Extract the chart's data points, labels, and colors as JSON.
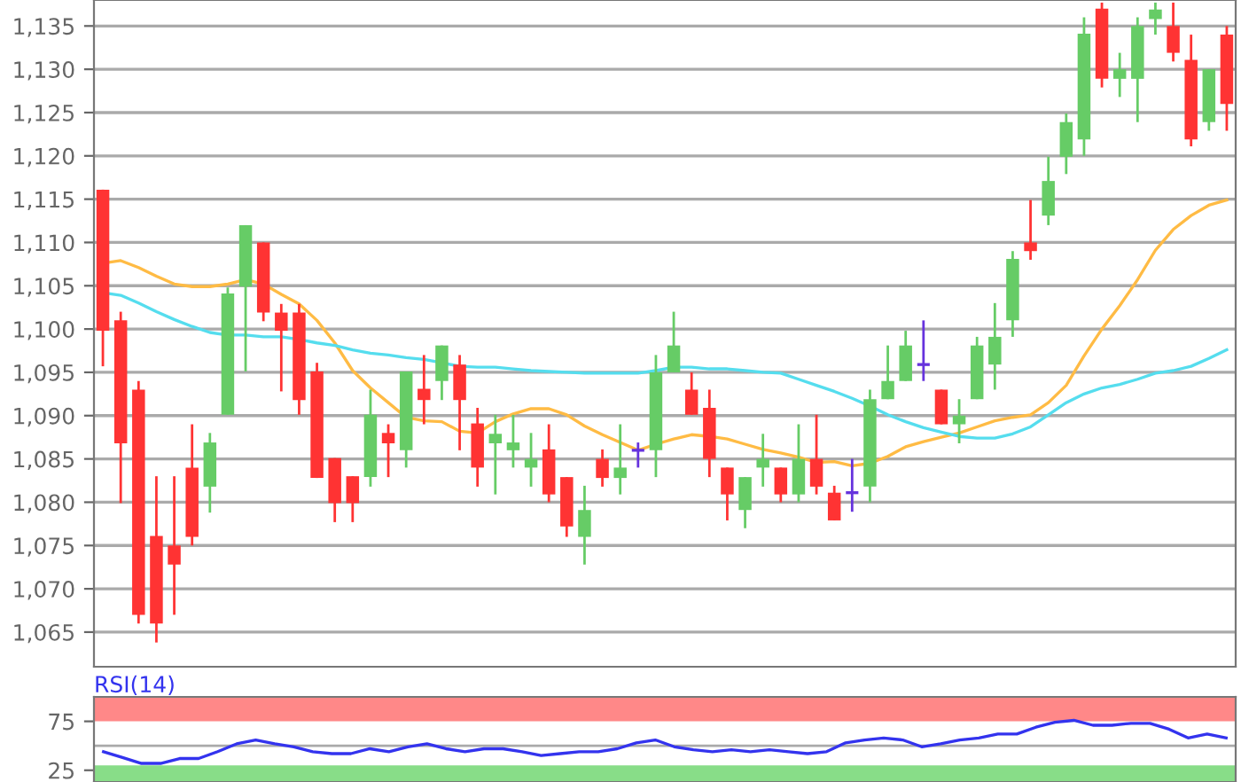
{
  "chart_data": [
    {
      "type": "candlestick",
      "categories": [
        null,
        null,
        null,
        null,
        null,
        null,
        null,
        null,
        null,
        null,
        null,
        null,
        null,
        null,
        null,
        null,
        null,
        null,
        null,
        null,
        null,
        null,
        null,
        null,
        null,
        null,
        null,
        null,
        null,
        null,
        null,
        null,
        null,
        null,
        null,
        null,
        null,
        null,
        null,
        null,
        null,
        null,
        null,
        null,
        null,
        null,
        null,
        null,
        null,
        null,
        null,
        null,
        null,
        null,
        null,
        null,
        null,
        null,
        null,
        null,
        null,
        null,
        null,
        null
      ],
      "ohlc": [
        [
          1116.1,
          1116.1,
          1095.7,
          1099.8
        ],
        [
          1101.0,
          1102.0,
          1079.9,
          1086.8
        ],
        [
          1093.0,
          1094.0,
          1066.0,
          1067.0
        ],
        [
          1076.1,
          1083.0,
          1063.8,
          1066.0
        ],
        [
          1075.0,
          1083.0,
          1067.0,
          1072.8
        ],
        [
          1084.0,
          1089.0,
          1075.0,
          1076.0
        ],
        [
          1081.8,
          1088.0,
          1078.8,
          1086.9
        ],
        [
          1090.1,
          1104.8,
          1090.1,
          1104.1
        ],
        [
          1104.9,
          1112.0,
          1095.1,
          1112.0
        ],
        [
          1110.0,
          1110.0,
          1100.9,
          1101.9
        ],
        [
          1101.9,
          1102.9,
          1092.8,
          1099.8
        ],
        [
          1101.9,
          1102.9,
          1090.1,
          1091.8
        ],
        [
          1095.1,
          1096.1,
          1082.8,
          1082.8
        ],
        [
          1085.1,
          1085.1,
          1077.7,
          1079.9
        ],
        [
          1083.0,
          1083.0,
          1077.7,
          1079.9
        ],
        [
          1082.9,
          1093.0,
          1081.8,
          1090.1
        ],
        [
          1088.0,
          1089.0,
          1082.9,
          1086.8
        ],
        [
          1086.0,
          1095.1,
          1084.0,
          1095.1
        ],
        [
          1093.1,
          1097.0,
          1089.0,
          1091.8
        ],
        [
          1094.0,
          1098.1,
          1091.8,
          1098.1
        ],
        [
          1095.9,
          1097.0,
          1086.0,
          1091.8
        ],
        [
          1089.1,
          1090.9,
          1081.8,
          1084.0
        ],
        [
          1086.8,
          1090.1,
          1080.9,
          1087.9
        ],
        [
          1086.0,
          1090.1,
          1084.0,
          1086.9
        ],
        [
          1084.0,
          1088.0,
          1081.8,
          1085.0
        ],
        [
          1086.1,
          1089.0,
          1080.0,
          1080.9
        ],
        [
          1082.9,
          1082.9,
          1076.0,
          1077.2
        ],
        [
          1076.0,
          1081.9,
          1072.8,
          1079.1
        ],
        [
          1085.0,
          1086.1,
          1081.8,
          1082.8
        ],
        [
          1082.8,
          1089.0,
          1080.9,
          1084.0
        ],
        [
          1086.0,
          1086.9,
          1084.0,
          1086.0
        ],
        [
          1086.0,
          1097.0,
          1082.9,
          1095.0
        ],
        [
          1095.0,
          1102.0,
          1095.0,
          1098.1
        ],
        [
          1093.0,
          1095.0,
          1090.1,
          1090.1
        ],
        [
          1090.9,
          1093.0,
          1082.9,
          1085.0
        ],
        [
          1084.0,
          1084.0,
          1077.9,
          1080.9
        ],
        [
          1079.1,
          1082.9,
          1077.0,
          1082.9
        ],
        [
          1084.0,
          1087.9,
          1081.8,
          1085.0
        ],
        [
          1084.0,
          1084.0,
          1080.0,
          1080.9
        ],
        [
          1080.9,
          1089.0,
          1080.0,
          1085.0
        ],
        [
          1085.0,
          1090.1,
          1080.9,
          1081.8
        ],
        [
          1081.1,
          1081.9,
          1077.9,
          1077.9
        ],
        [
          1081.1,
          1085.0,
          1078.9,
          1081.1
        ],
        [
          1081.8,
          1093.0,
          1080.0,
          1091.9
        ],
        [
          1091.9,
          1098.1,
          1091.9,
          1094.0
        ],
        [
          1094.0,
          1099.8,
          1094.0,
          1098.1
        ],
        [
          1095.9,
          1101.0,
          1094.0,
          1095.9
        ],
        [
          1093.0,
          1093.0,
          1089.0,
          1089.0
        ],
        [
          1089.0,
          1091.9,
          1086.8,
          1090.0
        ],
        [
          1091.9,
          1099.1,
          1091.9,
          1098.1
        ],
        [
          1095.9,
          1103.0,
          1093.0,
          1099.1
        ],
        [
          1101.0,
          1109.0,
          1099.1,
          1108.1
        ],
        [
          1110.0,
          1114.9,
          1108.0,
          1109.0
        ],
        [
          1113.1,
          1119.9,
          1112.0,
          1117.1
        ],
        [
          1119.9,
          1124.9,
          1117.9,
          1123.9
        ],
        [
          1121.9,
          1136.0,
          1120.0,
          1134.1
        ],
        [
          1137.0,
          1137.7,
          1127.9,
          1128.9
        ],
        [
          1128.9,
          1131.9,
          1126.8,
          1130.0
        ],
        [
          1128.9,
          1136.0,
          1123.9,
          1135.0
        ],
        [
          1135.8,
          1137.7,
          1134.0,
          1136.9
        ],
        [
          1135.0,
          1137.7,
          1130.9,
          1131.9
        ],
        [
          1131.1,
          1134.0,
          1121.1,
          1121.9
        ],
        [
          1123.9,
          1130.0,
          1122.9,
          1130.0
        ],
        [
          1134.0,
          1135.0,
          1122.9,
          1126.0
        ]
      ],
      "colors": [
        "#ff3333",
        "#ff3333",
        "#ff3333",
        "#ff3333",
        "#ff3333",
        "#ff3333",
        "#66cc66",
        "#66cc66",
        "#66cc66",
        "#ff3333",
        "#ff3333",
        "#ff3333",
        "#ff3333",
        "#ff3333",
        "#ff3333",
        "#66cc66",
        "#ff3333",
        "#66cc66",
        "#ff3333",
        "#66cc66",
        "#ff3333",
        "#ff3333",
        "#66cc66",
        "#66cc66",
        "#66cc66",
        "#ff3333",
        "#ff3333",
        "#66cc66",
        "#ff3333",
        "#66cc66",
        "#6633dd",
        "#66cc66",
        "#66cc66",
        "#ff3333",
        "#ff3333",
        "#ff3333",
        "#66cc66",
        "#66cc66",
        "#ff3333",
        "#66cc66",
        "#ff3333",
        "#ff3333",
        "#6633dd",
        "#66cc66",
        "#66cc66",
        "#66cc66",
        "#6633dd",
        "#ff3333",
        "#66cc66",
        "#66cc66",
        "#66cc66",
        "#66cc66",
        "#ff3333",
        "#66cc66",
        "#66cc66",
        "#66cc66",
        "#ff3333",
        "#66cc66",
        "#66cc66",
        "#66cc66",
        "#ff3333",
        "#ff3333",
        "#66cc66",
        "#ff3333"
      ],
      "series": [
        {
          "type": "line",
          "color": "#ffbb44",
          "values": [
            1107.6,
            1107.9,
            1107.1,
            1106.1,
            1105.2,
            1104.9,
            1104.9,
            1105.2,
            1105.7,
            1105.2,
            1104.0,
            1102.9,
            1101.0,
            1098.4,
            1095.2,
            1093.2,
            1091.5,
            1089.8,
            1089.4,
            1089.3,
            1088.2,
            1088.0,
            1089.3,
            1090.2,
            1090.8,
            1090.8,
            1090.1,
            1088.8,
            1087.8,
            1086.9,
            1086.0,
            1086.7,
            1087.3,
            1087.8,
            1087.6,
            1087.3,
            1086.7,
            1086.1,
            1085.7,
            1085.2,
            1084.6,
            1084.7,
            1084.2,
            1084.5,
            1085.3,
            1086.4,
            1087.0,
            1087.5,
            1088.0,
            1088.7,
            1089.4,
            1089.8,
            1090.1,
            1091.5,
            1093.5,
            1096.9,
            1100.0,
            1102.7,
            1105.7,
            1109.1,
            1111.5,
            1113.1,
            1114.3,
            1114.9
          ]
        },
        {
          "type": "line",
          "color": "#55ddee",
          "values": [
            1104.2,
            1103.9,
            1103.0,
            1102.0,
            1101.1,
            1100.3,
            1099.6,
            1099.3,
            1099.3,
            1099.1,
            1099.1,
            1098.8,
            1098.4,
            1098.1,
            1097.6,
            1097.2,
            1097.0,
            1096.7,
            1096.5,
            1096.1,
            1095.7,
            1095.6,
            1095.6,
            1095.4,
            1095.2,
            1095.1,
            1095.0,
            1094.9,
            1094.9,
            1094.9,
            1094.9,
            1095.2,
            1095.6,
            1095.6,
            1095.4,
            1095.4,
            1095.2,
            1095.0,
            1094.9,
            1094.2,
            1093.5,
            1092.8,
            1092.0,
            1091.1,
            1090.1,
            1089.3,
            1088.6,
            1088.1,
            1087.6,
            1087.4,
            1087.4,
            1087.9,
            1088.7,
            1090.1,
            1091.5,
            1092.5,
            1093.2,
            1093.6,
            1094.2,
            1094.9,
            1095.2,
            1095.7,
            1096.6,
            1097.6
          ]
        }
      ],
      "ylim": [
        1061,
        1138
      ],
      "yticks": [
        {
          "value": 1065,
          "label": "1,065"
        },
        {
          "value": 1070,
          "label": "1,070"
        },
        {
          "value": 1075,
          "label": "1,075"
        },
        {
          "value": 1080,
          "label": "1,080"
        },
        {
          "value": 1085,
          "label": "1,085"
        },
        {
          "value": 1090,
          "label": "1,090"
        },
        {
          "value": 1095,
          "label": "1,095"
        },
        {
          "value": 1100,
          "label": "1,100"
        },
        {
          "value": 1105,
          "label": "1,105"
        },
        {
          "value": 1110,
          "label": "1,110"
        },
        {
          "value": 1115,
          "label": "1,115"
        },
        {
          "value": 1120,
          "label": "1,120"
        },
        {
          "value": 1125,
          "label": "1,125"
        },
        {
          "value": 1130,
          "label": "1,130"
        },
        {
          "value": 1135,
          "label": "1,135"
        }
      ],
      "grid": "y",
      "tick_labels": "y"
    },
    {
      "type": "line",
      "title": "RSI(14)",
      "categories": [
        null,
        null,
        null,
        null,
        null,
        null,
        null,
        null,
        null,
        null,
        null,
        null,
        null,
        null,
        null,
        null,
        null,
        null,
        null,
        null,
        null,
        null,
        null,
        null,
        null,
        null,
        null,
        null,
        null,
        null,
        null,
        null,
        null,
        null,
        null,
        null,
        null,
        null,
        null,
        null,
        null,
        null,
        null,
        null,
        null,
        null,
        null,
        null,
        null,
        null,
        null,
        null,
        null,
        null,
        null,
        null,
        null,
        null,
        null,
        null
      ],
      "series": [
        {
          "color": "#3333ee",
          "values": [
            44,
            38,
            32,
            32,
            37,
            37,
            44,
            52,
            56,
            52,
            49,
            44,
            42,
            42,
            47,
            44,
            49,
            52,
            47,
            44,
            47,
            47,
            44,
            40,
            42,
            44,
            44,
            47,
            53,
            56,
            49,
            46,
            44,
            46,
            44,
            46,
            44,
            42,
            44,
            53,
            56,
            58,
            56,
            49,
            52,
            56,
            58,
            62,
            62,
            69,
            74,
            76,
            71,
            71,
            73,
            73,
            67,
            58,
            62,
            58
          ]
        }
      ],
      "ylim": [
        13,
        100
      ],
      "yticks": [
        25,
        75
      ],
      "bands": [
        {
          "axis": "y",
          "from": 75,
          "to": 100,
          "color": "#ff8888"
        },
        {
          "axis": "y",
          "from": 13,
          "to": 30,
          "color": "#88dd88"
        }
      ],
      "ref_lines": [
        {
          "axis": "y",
          "value": 50,
          "color": "#aaaaaa"
        }
      ],
      "tick_labels": "y"
    }
  ]
}
